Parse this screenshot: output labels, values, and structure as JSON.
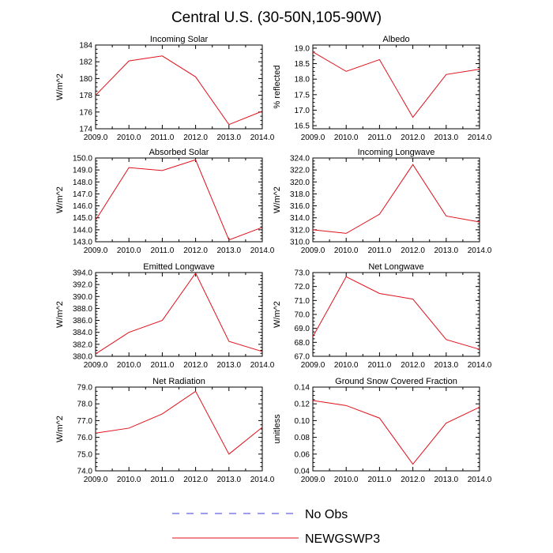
{
  "title": "Central U.S. (30-50N,105-90W)",
  "legend": [
    {
      "label": "No Obs",
      "color": "#3b3bd6",
      "style": "dashed"
    },
    {
      "label": "NEWGSWP3",
      "color": "#e0101a",
      "style": "solid"
    }
  ],
  "chart_data": [
    {
      "type": "line",
      "title": "Incoming Solar",
      "ylabel": "W/m^2",
      "x": [
        2009,
        2010,
        2011,
        2012,
        2013,
        2014
      ],
      "xticks": [
        "2009.0",
        "2010.0",
        "2011.0",
        "2012.0",
        "2013.0",
        "2014.0"
      ],
      "ylim": [
        174,
        184
      ],
      "yticks": [
        "174",
        "176",
        "178",
        "180",
        "182",
        "184"
      ],
      "series": [
        {
          "name": "NEWGSWP3",
          "values": [
            178.0,
            182.1,
            182.7,
            180.2,
            174.5,
            176.1
          ]
        }
      ]
    },
    {
      "type": "line",
      "title": "Albedo",
      "ylabel": "% reflected",
      "x": [
        2009,
        2010,
        2011,
        2012,
        2013,
        2014
      ],
      "xticks": [
        "2009.0",
        "2010.0",
        "2011.0",
        "2012.0",
        "2013.0",
        "2014.0"
      ],
      "ylim": [
        16.4,
        19.1
      ],
      "yticks": [
        "16.5",
        "17.0",
        "17.5",
        "18.0",
        "18.5",
        "19.0"
      ],
      "series": [
        {
          "name": "NEWGSWP3",
          "values": [
            18.88,
            18.25,
            18.63,
            16.77,
            18.15,
            18.32
          ]
        }
      ]
    },
    {
      "type": "line",
      "title": "Absorbed Solar",
      "ylabel": "W/m^2",
      "x": [
        2009,
        2010,
        2011,
        2012,
        2013,
        2014
      ],
      "xticks": [
        "2009.0",
        "2010.0",
        "2011.0",
        "2012.0",
        "2013.0",
        "2014.0"
      ],
      "ylim": [
        143,
        150
      ],
      "yticks": [
        "143.0",
        "144.0",
        "145.0",
        "146.0",
        "147.0",
        "148.0",
        "149.0",
        "150.0"
      ],
      "series": [
        {
          "name": "NEWGSWP3",
          "values": [
            144.8,
            149.2,
            148.95,
            149.85,
            143.15,
            144.2
          ]
        }
      ]
    },
    {
      "type": "line",
      "title": "Incoming Longwave",
      "ylabel": "W/m^2",
      "x": [
        2009,
        2010,
        2011,
        2012,
        2013,
        2014
      ],
      "xticks": [
        "2009.0",
        "2010.0",
        "2011.0",
        "2012.0",
        "2013.0",
        "2014.0"
      ],
      "ylim": [
        310,
        324
      ],
      "yticks": [
        "310.0",
        "312.0",
        "314.0",
        "316.0",
        "318.0",
        "320.0",
        "322.0",
        "324.0"
      ],
      "series": [
        {
          "name": "NEWGSWP3",
          "values": [
            312.0,
            311.4,
            314.6,
            322.9,
            314.3,
            313.3
          ]
        }
      ]
    },
    {
      "type": "line",
      "title": "Emitted Longwave",
      "ylabel": "W/m^2",
      "x": [
        2009,
        2010,
        2011,
        2012,
        2013,
        2014
      ],
      "xticks": [
        "2009.0",
        "2010.0",
        "2011.0",
        "2012.0",
        "2013.0",
        "2014.0"
      ],
      "ylim": [
        380,
        394
      ],
      "yticks": [
        "380.0",
        "382.0",
        "384.0",
        "386.0",
        "388.0",
        "390.0",
        "392.0",
        "394.0"
      ],
      "series": [
        {
          "name": "NEWGSWP3",
          "values": [
            380.4,
            384.0,
            386.0,
            393.9,
            382.5,
            380.8
          ]
        }
      ]
    },
    {
      "type": "line",
      "title": "Net Longwave",
      "ylabel": "W/m^2",
      "x": [
        2009,
        2010,
        2011,
        2012,
        2013,
        2014
      ],
      "xticks": [
        "2009.0",
        "2010.0",
        "2011.0",
        "2012.0",
        "2013.0",
        "2014.0"
      ],
      "ylim": [
        67,
        73
      ],
      "yticks": [
        "67.0",
        "68.0",
        "69.0",
        "70.0",
        "71.0",
        "72.0",
        "73.0"
      ],
      "series": [
        {
          "name": "NEWGSWP3",
          "values": [
            68.4,
            72.7,
            71.5,
            71.1,
            68.2,
            67.5
          ]
        }
      ]
    },
    {
      "type": "line",
      "title": "Net Radiation",
      "ylabel": "W/m^2",
      "x": [
        2009,
        2010,
        2011,
        2012,
        2013,
        2014
      ],
      "xticks": [
        "2009.0",
        "2010.0",
        "2011.0",
        "2012.0",
        "2013.0",
        "2014.0"
      ],
      "ylim": [
        74,
        79
      ],
      "yticks": [
        "74.0",
        "75.0",
        "76.0",
        "77.0",
        "78.0",
        "79.0"
      ],
      "series": [
        {
          "name": "NEWGSWP3",
          "values": [
            76.25,
            76.55,
            77.4,
            78.75,
            75.0,
            76.6
          ]
        }
      ]
    },
    {
      "type": "line",
      "title": "Ground Snow Covered Fraction",
      "ylabel": "unitless",
      "x": [
        2009,
        2010,
        2011,
        2012,
        2013,
        2014
      ],
      "xticks": [
        "2009.0",
        "2010.0",
        "2011.0",
        "2012.0",
        "2013.0",
        "2014.0"
      ],
      "ylim": [
        0.04,
        0.14
      ],
      "yticks": [
        "0.04",
        "0.06",
        "0.08",
        "0.10",
        "0.12",
        "0.14"
      ],
      "series": [
        {
          "name": "NEWGSWP3",
          "values": [
            0.124,
            0.118,
            0.103,
            0.048,
            0.097,
            0.116
          ]
        }
      ]
    }
  ]
}
